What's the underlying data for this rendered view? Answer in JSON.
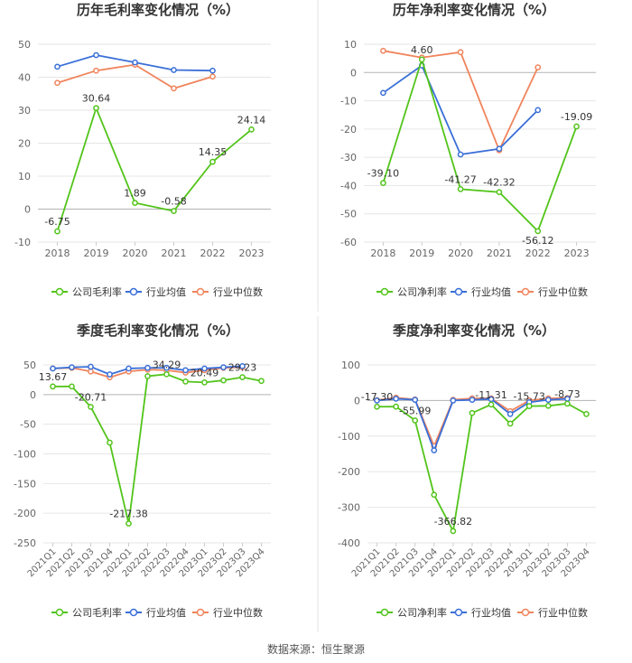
{
  "source_note": "数据来源：恒生聚源",
  "colors": {
    "company": "#52c41a",
    "average": "#3a6fd8",
    "median": "#f0845c",
    "grid": "#e6e6e6",
    "axis": "#999999",
    "text": "#333333"
  },
  "chart_data": [
    {
      "type": "line",
      "title": "历年毛利率变化情况（%）",
      "categories": [
        "2018",
        "2019",
        "2020",
        "2021",
        "2022",
        "2023"
      ],
      "ylim": [
        -10,
        50
      ],
      "yticks": [
        -10,
        0,
        10,
        20,
        30,
        40,
        50
      ],
      "series": [
        {
          "name": "公司毛利率",
          "values": [
            -6.75,
            30.64,
            1.89,
            -0.58,
            14.35,
            24.14
          ],
          "labels": [
            "-6.75",
            "30.64",
            "1.89",
            "-0.58",
            "14.35",
            "24.14"
          ]
        },
        {
          "name": "行业均值",
          "values": [
            43.2,
            46.7,
            44.5,
            42.2,
            42.0,
            null
          ]
        },
        {
          "name": "行业中位数",
          "values": [
            38.3,
            42.0,
            43.8,
            36.6,
            40.2,
            null
          ]
        }
      ],
      "legend_position": "bottom"
    },
    {
      "type": "line",
      "title": "历年净利率变化情况（%）",
      "categories": [
        "2018",
        "2019",
        "2020",
        "2021",
        "2022",
        "2023"
      ],
      "ylim": [
        -60,
        10
      ],
      "yticks": [
        -60,
        -50,
        -40,
        -30,
        -20,
        -10,
        0,
        10
      ],
      "series": [
        {
          "name": "公司净利率",
          "values": [
            -39.1,
            4.6,
            -41.27,
            -42.32,
            -56.12,
            -19.09
          ],
          "labels": [
            "-39.10",
            "4.60",
            "-41.27",
            "-42.32",
            "-56.12",
            "-19.09"
          ]
        },
        {
          "name": "行业均值",
          "values": [
            -7.2,
            2.5,
            -29.0,
            -27.0,
            -13.3,
            null
          ]
        },
        {
          "name": "行业中位数",
          "values": [
            7.7,
            5.3,
            7.2,
            -27.5,
            1.8,
            null
          ]
        }
      ],
      "legend_position": "bottom"
    },
    {
      "type": "line",
      "title": "季度毛利率变化情况（%）",
      "categories": [
        "2021Q1",
        "2021Q2",
        "2021Q3",
        "2021Q4",
        "2022Q1",
        "2022Q2",
        "2022Q3",
        "2022Q4",
        "2023Q1",
        "2023Q2",
        "2023Q3",
        "2023Q4"
      ],
      "ylim": [
        -250,
        50
      ],
      "yticks": [
        -250,
        -200,
        -150,
        -100,
        -50,
        0,
        50
      ],
      "series": [
        {
          "name": "公司毛利率",
          "values": [
            13.67,
            13.7,
            -20.71,
            -81.0,
            -217.38,
            31.0,
            34.29,
            22.0,
            20.49,
            24.0,
            29.23,
            23.0
          ],
          "labels": [
            "13.67",
            null,
            "-20.71",
            null,
            "-217.38",
            null,
            "34.29",
            null,
            "20.49",
            null,
            "29.23",
            null
          ]
        },
        {
          "name": "行业均值",
          "values": [
            44.0,
            46.0,
            47.0,
            34.0,
            44.0,
            45.0,
            45.0,
            41.0,
            44.0,
            46.0,
            48.0,
            null
          ]
        },
        {
          "name": "行业中位数",
          "values": [
            44.0,
            45.0,
            39.0,
            29.0,
            39.0,
            42.0,
            41.0,
            37.0,
            41.0,
            45.0,
            46.0,
            null
          ]
        }
      ],
      "legend_position": "bottom"
    },
    {
      "type": "line",
      "title": "季度净利率变化情况（%）",
      "categories": [
        "2021Q1",
        "2021Q2",
        "2021Q3",
        "2021Q4",
        "2022Q1",
        "2022Q2",
        "2022Q3",
        "2022Q4",
        "2023Q1",
        "2023Q2",
        "2023Q3",
        "2023Q4"
      ],
      "ylim": [
        -400,
        100
      ],
      "yticks": [
        -400,
        -300,
        -200,
        -100,
        0,
        100
      ],
      "series": [
        {
          "name": "公司净利率",
          "values": [
            -17.3,
            -17.0,
            -55.99,
            -265.0,
            -366.82,
            -35.0,
            -11.31,
            -65.0,
            -15.73,
            -15.0,
            -8.73,
            -38.0
          ],
          "labels": [
            "-17.30",
            null,
            "-55.99",
            null,
            "-366.82",
            null,
            "-11.31",
            null,
            "-15.73",
            null,
            "-8.73",
            null
          ]
        },
        {
          "name": "行业均值",
          "values": [
            0.0,
            5.0,
            2.0,
            -140.0,
            0.0,
            2.0,
            4.0,
            -38.0,
            -5.0,
            2.0,
            5.0,
            null
          ]
        },
        {
          "name": "行业中位数",
          "values": [
            1.0,
            8.0,
            3.0,
            -128.0,
            2.0,
            6.0,
            6.0,
            -30.0,
            0.0,
            6.0,
            7.0,
            null
          ]
        }
      ],
      "legend_position": "bottom"
    }
  ]
}
